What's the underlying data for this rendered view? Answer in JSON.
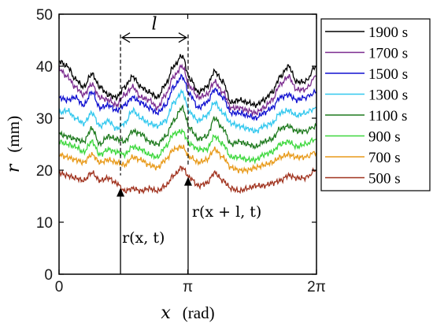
{
  "chart_data": {
    "type": "line",
    "title": "",
    "xlabel_var": "x",
    "xlabel_unit": "(rad)",
    "ylabel_var": "r",
    "ylabel_unit": "(mm)",
    "xlim": [
      0,
      6.2832
    ],
    "ylim": [
      0,
      50
    ],
    "x_ticks": [
      {
        "value": 0,
        "label": "0"
      },
      {
        "value": 3.1416,
        "label": "π"
      },
      {
        "value": 6.2832,
        "label": "2π"
      }
    ],
    "y_ticks": [
      {
        "value": 0,
        "label": "0"
      },
      {
        "value": 10,
        "label": "10"
      },
      {
        "value": 20,
        "label": "20"
      },
      {
        "value": 30,
        "label": "30"
      },
      {
        "value": 40,
        "label": "40"
      },
      {
        "value": 50,
        "label": "50"
      }
    ],
    "legend_position": "right",
    "x": [
      0,
      0.2,
      0.4,
      0.6,
      0.8,
      1.0,
      1.2,
      1.4,
      1.6,
      1.8,
      2.0,
      2.2,
      2.4,
      2.6,
      2.8,
      3.0,
      3.2,
      3.4,
      3.6,
      3.8,
      4.0,
      4.2,
      4.4,
      4.6,
      4.8,
      5.0,
      5.2,
      5.4,
      5.6,
      5.8,
      6.0,
      6.2832
    ],
    "series": [
      {
        "name": "1900 s",
        "color": "#000000",
        "values": [
          41,
          40,
          37.5,
          36,
          38.5,
          36,
          34.5,
          34,
          36,
          38,
          36,
          35,
          34,
          36.5,
          40,
          42,
          37.5,
          35,
          36,
          39,
          37,
          33,
          33.5,
          33,
          32.5,
          33.5,
          35,
          38,
          40,
          37,
          37,
          40
        ]
      },
      {
        "name": "1700 s",
        "color": "#7b2c8f",
        "values": [
          39.5,
          38,
          36,
          34.5,
          36.5,
          34,
          33.5,
          32.5,
          34.5,
          36,
          34,
          33.5,
          32,
          34.5,
          38,
          40,
          36,
          34,
          34.5,
          37,
          35,
          32,
          32,
          31.5,
          31,
          32,
          33.5,
          36.5,
          38,
          35.5,
          35.5,
          38
        ]
      },
      {
        "name": "1500 s",
        "color": "#1010d0",
        "values": [
          34,
          33.5,
          34,
          32.5,
          35,
          32,
          32.5,
          31.5,
          32.5,
          34,
          33,
          32,
          31,
          32.5,
          36,
          38,
          34.5,
          32,
          33,
          35.5,
          34,
          31,
          31,
          30.5,
          30,
          31,
          32,
          34,
          34.5,
          33.5,
          34,
          35
        ]
      },
      {
        "name": "1300 s",
        "color": "#33c8ee",
        "values": [
          31,
          31.5,
          30,
          29,
          31,
          28.5,
          29.5,
          28,
          29,
          31.5,
          30,
          29,
          28.5,
          29.5,
          33,
          35,
          31,
          29.5,
          30.5,
          33,
          31,
          29,
          28.5,
          28,
          27.5,
          28.5,
          29,
          31,
          31.5,
          30.5,
          31,
          32
        ]
      },
      {
        "name": "1100 s",
        "color": "#1e7a1e",
        "values": [
          27,
          26.5,
          26,
          25.5,
          28,
          25,
          26.5,
          26,
          25.5,
          27.5,
          27,
          25.5,
          25,
          26.5,
          29.5,
          32,
          28,
          26,
          26.5,
          30,
          28,
          25,
          25.5,
          25,
          24.5,
          25.5,
          26,
          28,
          28.5,
          27.5,
          27.5,
          28.5
        ]
      },
      {
        "name": "900 s",
        "color": "#3ed83e",
        "values": [
          25.5,
          25,
          24.5,
          23.5,
          25.5,
          23,
          24,
          23.5,
          23,
          24.5,
          24,
          23,
          22.5,
          24.5,
          27,
          27.5,
          25,
          24,
          24,
          26.5,
          25,
          22.5,
          22.5,
          22,
          22,
          23,
          23.5,
          25,
          25.5,
          24.5,
          25,
          26
        ]
      },
      {
        "name": "700 s",
        "color": "#e89a1a",
        "values": [
          23,
          22.5,
          22,
          21.5,
          23,
          21.5,
          22,
          21.5,
          21,
          22.5,
          22,
          21,
          20.5,
          22,
          24,
          24.5,
          22.5,
          21.5,
          22,
          24,
          22.5,
          20.5,
          20,
          20,
          20.5,
          21,
          21.5,
          22.5,
          23,
          22.5,
          22.5,
          23.5
        ]
      },
      {
        "name": "500 s",
        "color": "#a0321e",
        "values": [
          19.5,
          19,
          18.5,
          18,
          19.5,
          18,
          18.5,
          17.5,
          16,
          16.5,
          16,
          16.5,
          16,
          17,
          19,
          20.5,
          18.5,
          17,
          17.5,
          19.5,
          18,
          16.5,
          16,
          16.5,
          17,
          17,
          17.5,
          18,
          19,
          18.5,
          18.5,
          20
        ]
      }
    ],
    "annotations": {
      "l_label": "l",
      "l_start": 1.5,
      "l_end": 3.15,
      "l_arrow_y": 45.5,
      "r_left_label": "r(x, t)",
      "r_right_label": "r(x + l, t)"
    }
  }
}
